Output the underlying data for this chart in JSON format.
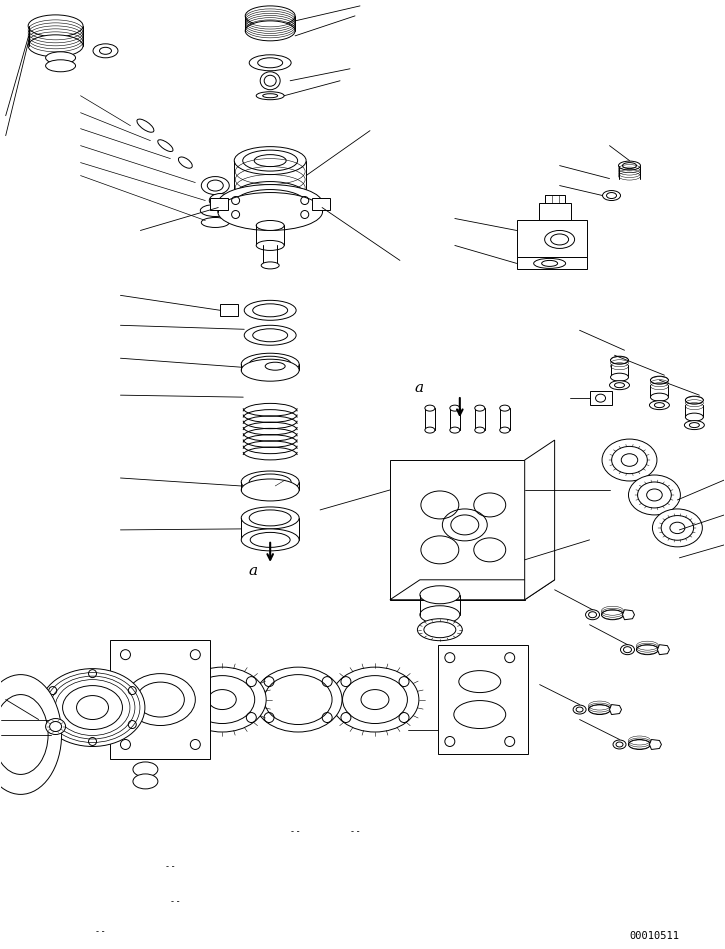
{
  "background_color": "#ffffff",
  "page_number": "00010511",
  "fig_width": 7.25,
  "fig_height": 9.49,
  "dpi": 100,
  "line_color": "#000000",
  "line_width": 0.7
}
